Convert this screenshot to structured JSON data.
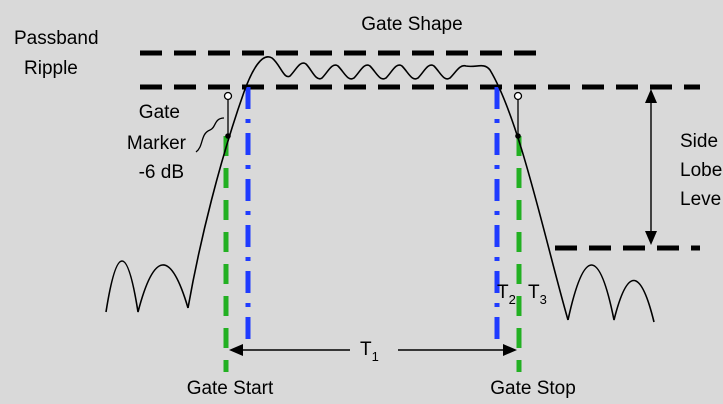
{
  "title": "Gate Shape",
  "passband_ripple": [
    "Passband",
    "Ripple"
  ],
  "gate_marker": [
    "Gate",
    "Marker",
    "-6 dB"
  ],
  "side_lobe_level": [
    "Side",
    "Lobe",
    "Leve"
  ],
  "gate_start": "Gate Start",
  "gate_stop": "Gate Stop",
  "t1": {
    "base": "T",
    "sub": "1"
  },
  "t2": {
    "base": "T",
    "sub": "2"
  },
  "t3": {
    "base": "T",
    "sub": "3"
  },
  "colors": {
    "background": "#d9d9d9",
    "passband_edge": "#1f3bff",
    "gate_edge": "#22b022",
    "line": "#000000"
  }
}
